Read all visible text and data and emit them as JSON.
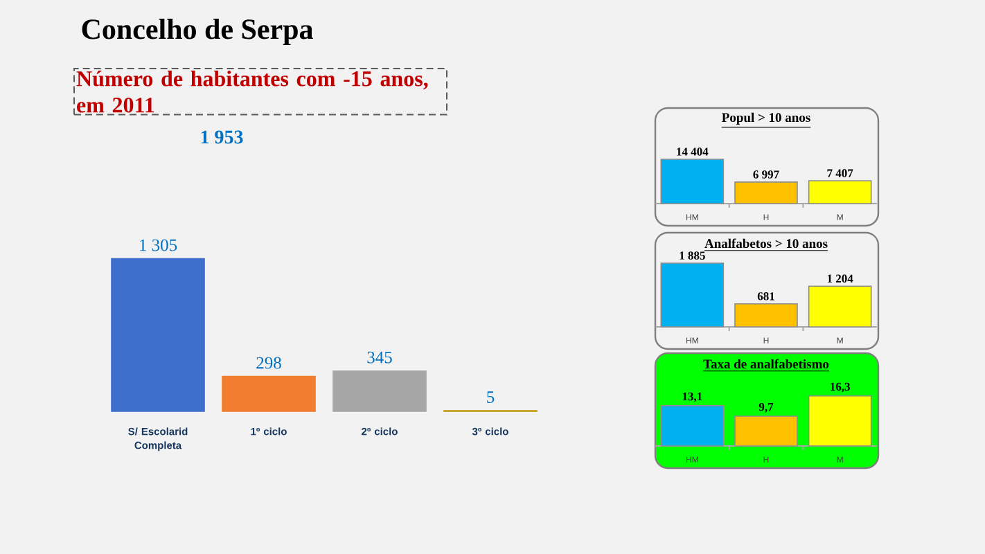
{
  "chart_data": [
    {
      "type": "bar",
      "title": "Concelho de Serpa",
      "subtitle": "Número de habitantes com -15 anos, em 2011",
      "annotations": [
        "1 953"
      ],
      "categories": [
        "S/ Escolarid Completa",
        "1º ciclo",
        "2º ciclo",
        "3º ciclo"
      ],
      "values": [
        1305,
        298,
        345,
        5
      ],
      "value_labels": [
        "1 305",
        "298",
        "345",
        "5"
      ],
      "colors": [
        "#3f6fcd",
        "#f27c2f",
        "#a6a6a6",
        "#c09700"
      ],
      "tick_labels": "x"
    },
    {
      "type": "bar",
      "title": "Popul > 10 anos",
      "categories": [
        "HM",
        "H",
        "M"
      ],
      "values": [
        14404,
        6997,
        7407
      ],
      "value_labels": [
        "14 404",
        "6 997",
        "7 407"
      ],
      "colors": [
        "#00b0f0",
        "#ffc000",
        "#ffff00"
      ],
      "tick_labels": "x"
    },
    {
      "type": "bar",
      "title": "Analfabetos > 10 anos",
      "categories": [
        "HM",
        "H",
        "M"
      ],
      "values": [
        1885,
        681,
        1204
      ],
      "value_labels": [
        "1 885",
        "681",
        "1 204"
      ],
      "colors": [
        "#00b0f0",
        "#ffc000",
        "#ffff00"
      ],
      "tick_labels": "x"
    },
    {
      "type": "bar",
      "title": "Taxa de analfabetismo",
      "categories": [
        "HM",
        "H",
        "M"
      ],
      "values": [
        13.1,
        9.7,
        16.3
      ],
      "value_labels": [
        "13,1",
        "9,7",
        "16,3"
      ],
      "colors": [
        "#00b0f0",
        "#ffc000",
        "#ffff00"
      ],
      "tick_labels": "x"
    }
  ]
}
